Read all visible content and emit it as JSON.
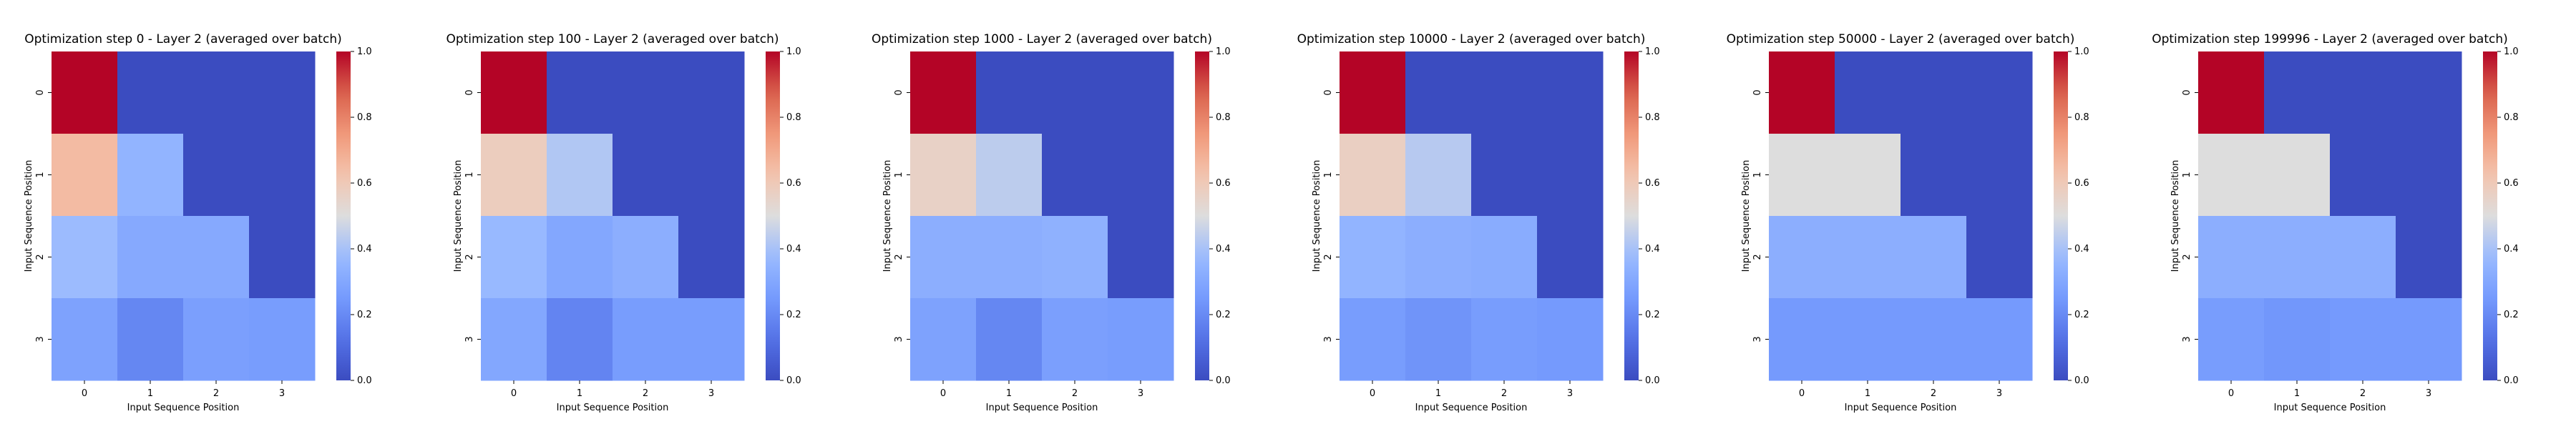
{
  "chart_data": [
    {
      "type": "heatmap",
      "title": "Optimization step 0 - Layer 2 (averaged over batch)",
      "xlabel": "Input Sequence Position",
      "ylabel": "Input Sequence Position",
      "x_ticks": [
        "0",
        "1",
        "2",
        "3"
      ],
      "y_ticks": [
        "0",
        "1",
        "2",
        "3"
      ],
      "colormap": "coolwarm",
      "vmin": 0.0,
      "vmax": 1.0,
      "colorbar_ticks": [
        "0.0",
        "0.2",
        "0.4",
        "0.6",
        "0.8",
        "1.0"
      ],
      "values": [
        [
          1.0,
          0.0,
          0.0,
          0.0
        ],
        [
          0.65,
          0.35,
          0.0,
          0.0
        ],
        [
          0.38,
          0.31,
          0.31,
          0.0
        ],
        [
          0.28,
          0.19,
          0.27,
          0.26
        ]
      ]
    },
    {
      "type": "heatmap",
      "title": "Optimization step 100 - Layer 2 (averaged over batch)",
      "xlabel": "Input Sequence Position",
      "ylabel": "Input Sequence Position",
      "x_ticks": [
        "0",
        "1",
        "2",
        "3"
      ],
      "y_ticks": [
        "0",
        "1",
        "2",
        "3"
      ],
      "colormap": "coolwarm",
      "vmin": 0.0,
      "vmax": 1.0,
      "colorbar_ticks": [
        "0.0",
        "0.2",
        "0.4",
        "0.6",
        "0.8",
        "1.0"
      ],
      "values": [
        [
          1.0,
          0.0,
          0.0,
          0.0
        ],
        [
          0.58,
          0.42,
          0.0,
          0.0
        ],
        [
          0.37,
          0.3,
          0.33,
          0.0
        ],
        [
          0.3,
          0.18,
          0.26,
          0.26
        ]
      ]
    },
    {
      "type": "heatmap",
      "title": "Optimization step 1000 - Layer 2 (averaged over batch)",
      "xlabel": "Input Sequence Position",
      "ylabel": "Input Sequence Position",
      "x_ticks": [
        "0",
        "1",
        "2",
        "3"
      ],
      "y_ticks": [
        "0",
        "1",
        "2",
        "3"
      ],
      "colormap": "coolwarm",
      "vmin": 0.0,
      "vmax": 1.0,
      "colorbar_ticks": [
        "0.0",
        "0.2",
        "0.4",
        "0.6",
        "0.8",
        "1.0"
      ],
      "values": [
        [
          1.0,
          0.0,
          0.0,
          0.0
        ],
        [
          0.56,
          0.44,
          0.0,
          0.0
        ],
        [
          0.33,
          0.33,
          0.34,
          0.0
        ],
        [
          0.28,
          0.19,
          0.27,
          0.26
        ]
      ]
    },
    {
      "type": "heatmap",
      "title": "Optimization step 10000 - Layer 2 (averaged over batch)",
      "xlabel": "Input Sequence Position",
      "ylabel": "Input Sequence Position",
      "x_ticks": [
        "0",
        "1",
        "2",
        "3"
      ],
      "y_ticks": [
        "0",
        "1",
        "2",
        "3"
      ],
      "colormap": "coolwarm",
      "vmin": 0.0,
      "vmax": 1.0,
      "colorbar_ticks": [
        "0.0",
        "0.2",
        "0.4",
        "0.6",
        "0.8",
        "1.0"
      ],
      "values": [
        [
          1.0,
          0.0,
          0.0,
          0.0
        ],
        [
          0.57,
          0.43,
          0.0,
          0.0
        ],
        [
          0.35,
          0.33,
          0.32,
          0.0
        ],
        [
          0.26,
          0.23,
          0.26,
          0.25
        ]
      ]
    },
    {
      "type": "heatmap",
      "title": "Optimization step 50000 - Layer 2 (averaged over batch)",
      "xlabel": "Input Sequence Position",
      "ylabel": "Input Sequence Position",
      "x_ticks": [
        "0",
        "1",
        "2",
        "3"
      ],
      "y_ticks": [
        "0",
        "1",
        "2",
        "3"
      ],
      "colormap": "coolwarm",
      "vmin": 0.0,
      "vmax": 1.0,
      "colorbar_ticks": [
        "0.0",
        "0.2",
        "0.4",
        "0.6",
        "0.8",
        "1.0"
      ],
      "values": [
        [
          1.0,
          0.0,
          0.0,
          0.0
        ],
        [
          0.5,
          0.5,
          0.0,
          0.0
        ],
        [
          0.33,
          0.33,
          0.33,
          0.0
        ],
        [
          0.25,
          0.25,
          0.25,
          0.25
        ]
      ]
    },
    {
      "type": "heatmap",
      "title": "Optimization step 199996 - Layer 2 (averaged over batch)",
      "xlabel": "Input Sequence Position",
      "ylabel": "Input Sequence Position",
      "x_ticks": [
        "0",
        "1",
        "2",
        "3"
      ],
      "y_ticks": [
        "0",
        "1",
        "2",
        "3"
      ],
      "colormap": "coolwarm",
      "vmin": 0.0,
      "vmax": 1.0,
      "colorbar_ticks": [
        "0.0",
        "0.2",
        "0.4",
        "0.6",
        "0.8",
        "1.0"
      ],
      "values": [
        [
          1.0,
          0.0,
          0.0,
          0.0
        ],
        [
          0.5,
          0.5,
          0.0,
          0.0
        ],
        [
          0.33,
          0.33,
          0.33,
          0.0
        ],
        [
          0.26,
          0.24,
          0.25,
          0.25
        ]
      ]
    }
  ]
}
